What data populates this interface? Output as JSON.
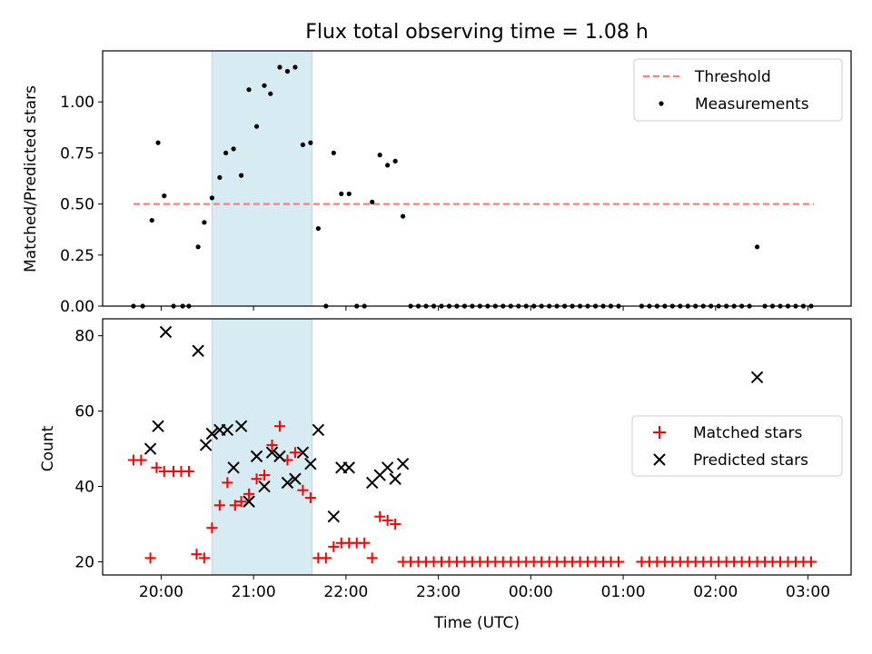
{
  "chart_data": [
    {
      "type": "scatter",
      "title": "Flux total observing time = 1.08 h",
      "xlabel": "",
      "ylabel": "Matched/Predicted stars",
      "xlim": [
        "19:22",
        "03:28"
      ],
      "ylim": [
        0,
        1.25
      ],
      "yticks": [
        "0.00",
        "0.25",
        "0.50",
        "0.75",
        "1.00"
      ],
      "shaded_interval": [
        "20:33",
        "21:38"
      ],
      "shade_color": "#add8e6",
      "legend_position": "upper right",
      "legend": [
        "Threshold",
        "Measurements"
      ],
      "threshold": {
        "name": "Threshold",
        "value": 0.5,
        "x_start": "19:42",
        "x_end": "03:04",
        "color": "#ff7f7f",
        "style": "dashed"
      },
      "series": [
        {
          "name": "Measurements",
          "color": "#000000",
          "marker": "dot",
          "points": [
            [
              "19:42",
              0.0
            ],
            [
              "19:48",
              0.0
            ],
            [
              "19:54",
              0.42
            ],
            [
              "19:58",
              0.8
            ],
            [
              "20:02",
              0.54
            ],
            [
              "20:08",
              0.0
            ],
            [
              "20:14",
              0.0
            ],
            [
              "20:18",
              0.0
            ],
            [
              "20:24",
              0.29
            ],
            [
              "20:28",
              0.41
            ],
            [
              "20:33",
              0.53
            ],
            [
              "20:38",
              0.63
            ],
            [
              "20:42",
              0.75
            ],
            [
              "20:47",
              0.77
            ],
            [
              "20:52",
              0.64
            ],
            [
              "20:57",
              1.06
            ],
            [
              "21:02",
              0.88
            ],
            [
              "21:07",
              1.08
            ],
            [
              "21:11",
              1.04
            ],
            [
              "21:17",
              1.17
            ],
            [
              "21:22",
              1.15
            ],
            [
              "21:27",
              1.17
            ],
            [
              "21:32",
              0.79
            ],
            [
              "21:37",
              0.8
            ],
            [
              "21:42",
              0.38
            ],
            [
              "21:47",
              0.0
            ],
            [
              "21:52",
              0.75
            ],
            [
              "21:57",
              0.55
            ],
            [
              "22:02",
              0.55
            ],
            [
              "22:07",
              0.0
            ],
            [
              "22:12",
              0.0
            ],
            [
              "22:17",
              0.51
            ],
            [
              "22:22",
              0.74
            ],
            [
              "22:27",
              0.69
            ],
            [
              "22:32",
              0.71
            ],
            [
              "22:37",
              0.44
            ],
            [
              "22:42",
              0.0
            ],
            [
              "22:47",
              0.0
            ],
            [
              "22:52",
              0.0
            ],
            [
              "22:57",
              0.0
            ],
            [
              "23:02",
              0.0
            ],
            [
              "23:07",
              0.0
            ],
            [
              "23:12",
              0.0
            ],
            [
              "23:17",
              0.0
            ],
            [
              "23:22",
              0.0
            ],
            [
              "23:27",
              0.0
            ],
            [
              "23:32",
              0.0
            ],
            [
              "23:37",
              0.0
            ],
            [
              "23:42",
              0.0
            ],
            [
              "23:47",
              0.0
            ],
            [
              "23:52",
              0.0
            ],
            [
              "23:57",
              0.0
            ],
            [
              "00:02",
              0.0
            ],
            [
              "00:07",
              0.0
            ],
            [
              "00:12",
              0.0
            ],
            [
              "00:17",
              0.0
            ],
            [
              "00:22",
              0.0
            ],
            [
              "00:27",
              0.0
            ],
            [
              "00:32",
              0.0
            ],
            [
              "00:37",
              0.0
            ],
            [
              "00:42",
              0.0
            ],
            [
              "00:47",
              0.0
            ],
            [
              "00:52",
              0.0
            ],
            [
              "00:57",
              0.0
            ],
            [
              "01:12",
              0.0
            ],
            [
              "01:17",
              0.0
            ],
            [
              "01:22",
              0.0
            ],
            [
              "01:27",
              0.0
            ],
            [
              "01:32",
              0.0
            ],
            [
              "01:37",
              0.0
            ],
            [
              "01:42",
              0.0
            ],
            [
              "01:47",
              0.0
            ],
            [
              "01:52",
              0.0
            ],
            [
              "01:57",
              0.0
            ],
            [
              "02:02",
              0.0
            ],
            [
              "02:07",
              0.0
            ],
            [
              "02:12",
              0.0
            ],
            [
              "02:17",
              0.0
            ],
            [
              "02:22",
              0.0
            ],
            [
              "02:27",
              0.29
            ],
            [
              "02:32",
              0.0
            ],
            [
              "02:37",
              0.0
            ],
            [
              "02:42",
              0.0
            ],
            [
              "02:47",
              0.0
            ],
            [
              "02:52",
              0.0
            ],
            [
              "02:57",
              0.0
            ],
            [
              "03:02",
              0.0
            ]
          ]
        }
      ]
    },
    {
      "type": "scatter",
      "title": "",
      "xlabel": "Time (UTC)",
      "ylabel": "Count",
      "xlim": [
        "19:22",
        "03:28"
      ],
      "ylim": [
        16.5,
        84.5
      ],
      "yticks": [
        "20",
        "40",
        "60",
        "80"
      ],
      "xticks": [
        "20:00",
        "21:00",
        "22:00",
        "23:00",
        "00:00",
        "01:00",
        "02:00",
        "03:00"
      ],
      "shaded_interval": [
        "20:33",
        "21:38"
      ],
      "shade_color": "#add8e6",
      "legend_position": "center right",
      "legend": [
        "Matched stars",
        "Predicted stars"
      ],
      "series": [
        {
          "name": "Matched stars",
          "color": "#ff0000",
          "marker": "plus",
          "points": [
            [
              "19:42",
              47
            ],
            [
              "19:47",
              47
            ],
            [
              "19:53",
              21
            ],
            [
              "19:57",
              45
            ],
            [
              "20:02",
              44
            ],
            [
              "20:08",
              44
            ],
            [
              "20:13",
              44
            ],
            [
              "20:18",
              44
            ],
            [
              "20:23",
              22
            ],
            [
              "20:28",
              21
            ],
            [
              "20:33",
              29
            ],
            [
              "20:38",
              35
            ],
            [
              "20:43",
              41
            ],
            [
              "20:48",
              35
            ],
            [
              "20:52",
              36
            ],
            [
              "20:57",
              38
            ],
            [
              "21:02",
              42
            ],
            [
              "21:07",
              43
            ],
            [
              "21:12",
              51
            ],
            [
              "21:17",
              56
            ],
            [
              "21:22",
              47
            ],
            [
              "21:27",
              49
            ],
            [
              "21:32",
              39
            ],
            [
              "21:37",
              37
            ],
            [
              "21:42",
              21
            ],
            [
              "21:47",
              21
            ],
            [
              "21:52",
              24
            ],
            [
              "21:57",
              25
            ],
            [
              "22:02",
              25
            ],
            [
              "22:07",
              25
            ],
            [
              "22:12",
              25
            ],
            [
              "22:17",
              21
            ],
            [
              "22:22",
              32
            ],
            [
              "22:27",
              31
            ],
            [
              "22:32",
              30
            ],
            [
              "22:37",
              20
            ],
            [
              "22:42",
              20
            ],
            [
              "22:47",
              20
            ],
            [
              "22:52",
              20
            ],
            [
              "22:57",
              20
            ],
            [
              "23:02",
              20
            ],
            [
              "23:07",
              20
            ],
            [
              "23:12",
              20
            ],
            [
              "23:17",
              20
            ],
            [
              "23:22",
              20
            ],
            [
              "23:27",
              20
            ],
            [
              "23:32",
              20
            ],
            [
              "23:37",
              20
            ],
            [
              "23:42",
              20
            ],
            [
              "23:47",
              20
            ],
            [
              "23:52",
              20
            ],
            [
              "23:57",
              20
            ],
            [
              "00:02",
              20
            ],
            [
              "00:07",
              20
            ],
            [
              "00:12",
              20
            ],
            [
              "00:17",
              20
            ],
            [
              "00:22",
              20
            ],
            [
              "00:27",
              20
            ],
            [
              "00:32",
              20
            ],
            [
              "00:37",
              20
            ],
            [
              "00:42",
              20
            ],
            [
              "00:47",
              20
            ],
            [
              "00:52",
              20
            ],
            [
              "00:57",
              20
            ],
            [
              "01:12",
              20
            ],
            [
              "01:17",
              20
            ],
            [
              "01:22",
              20
            ],
            [
              "01:27",
              20
            ],
            [
              "01:32",
              20
            ],
            [
              "01:37",
              20
            ],
            [
              "01:42",
              20
            ],
            [
              "01:47",
              20
            ],
            [
              "01:52",
              20
            ],
            [
              "01:57",
              20
            ],
            [
              "02:02",
              20
            ],
            [
              "02:07",
              20
            ],
            [
              "02:12",
              20
            ],
            [
              "02:17",
              20
            ],
            [
              "02:22",
              20
            ],
            [
              "02:27",
              20
            ],
            [
              "02:32",
              20
            ],
            [
              "02:37",
              20
            ],
            [
              "02:42",
              20
            ],
            [
              "02:47",
              20
            ],
            [
              "02:52",
              20
            ],
            [
              "02:57",
              20
            ],
            [
              "03:02",
              20
            ]
          ]
        },
        {
          "name": "Predicted stars",
          "color": "#000000",
          "marker": "x",
          "points": [
            [
              "19:53",
              50
            ],
            [
              "19:58",
              56
            ],
            [
              "20:03",
              81
            ],
            [
              "20:24",
              76
            ],
            [
              "20:29",
              51
            ],
            [
              "20:33",
              54
            ],
            [
              "20:38",
              55
            ],
            [
              "20:43",
              55
            ],
            [
              "20:47",
              45
            ],
            [
              "20:52",
              56
            ],
            [
              "20:57",
              36
            ],
            [
              "21:02",
              48
            ],
            [
              "21:07",
              40
            ],
            [
              "21:12",
              49
            ],
            [
              "21:17",
              48
            ],
            [
              "21:22",
              41
            ],
            [
              "21:27",
              42
            ],
            [
              "21:32",
              49
            ],
            [
              "21:37",
              46
            ],
            [
              "21:42",
              55
            ],
            [
              "21:52",
              32
            ],
            [
              "21:57",
              45
            ],
            [
              "22:02",
              45
            ],
            [
              "22:17",
              41
            ],
            [
              "22:22",
              43
            ],
            [
              "22:27",
              45
            ],
            [
              "22:32",
              42
            ],
            [
              "22:37",
              46
            ],
            [
              "02:27",
              69
            ]
          ]
        }
      ]
    }
  ]
}
